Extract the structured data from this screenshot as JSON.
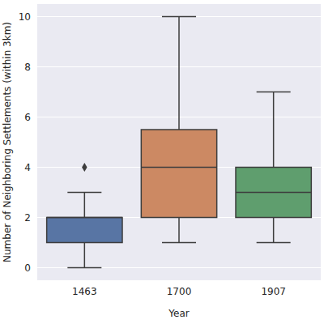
{
  "chart_data": {
    "type": "box",
    "x_label": "Year",
    "y_label": "Number of Neighboring Settlements (within 3km)",
    "categories": [
      "1463",
      "1700",
      "1907"
    ],
    "boxes": [
      {
        "whisker_low": 0,
        "q1": 1,
        "median": 2,
        "q3": 2,
        "whisker_high": 3,
        "outliers": [
          4
        ]
      },
      {
        "whisker_low": 1,
        "q1": 2,
        "median": 4,
        "q3": 5.5,
        "whisker_high": 10,
        "outliers": []
      },
      {
        "whisker_low": 1,
        "q1": 2,
        "median": 3,
        "q3": 4,
        "whisker_high": 7,
        "outliers": []
      }
    ],
    "colors": [
      "#5875a4",
      "#cc8963",
      "#5f9e6e"
    ],
    "ylim": [
      -0.5,
      10.5
    ],
    "yticks": [
      0,
      2,
      4,
      6,
      8,
      10
    ],
    "grid": true
  }
}
